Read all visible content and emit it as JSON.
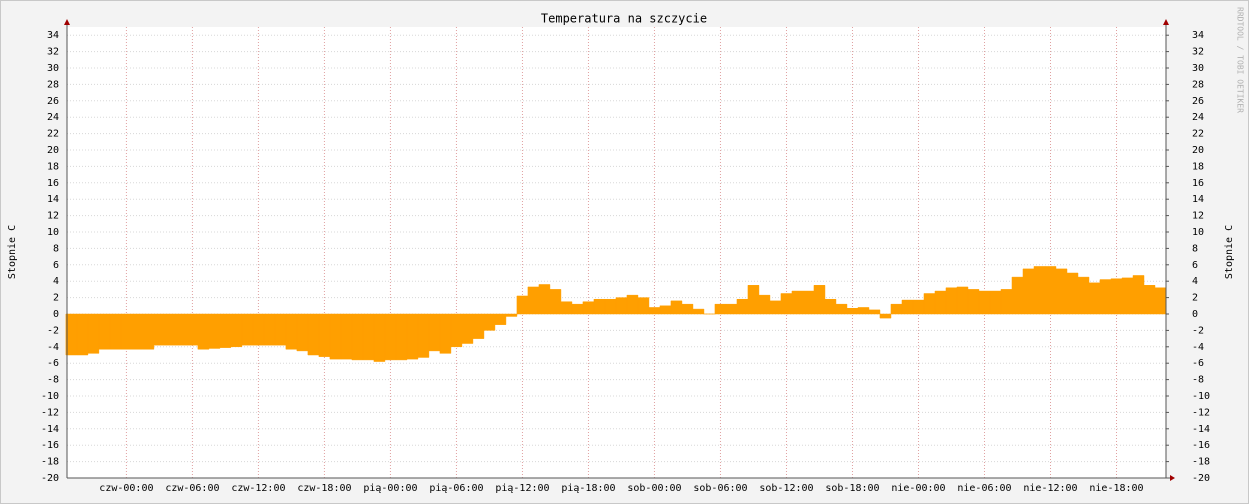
{
  "chart_data": {
    "type": "area",
    "title": "Temperatura na szczycie",
    "y_label": "Stopnie C",
    "y2_label": "Stopnie C",
    "watermark": "RRDTOOL / TOBI OETIKER",
    "x": [
      -5,
      -4,
      -3,
      -2,
      -1,
      0,
      1,
      2,
      3,
      4,
      5,
      6,
      7,
      8,
      9,
      10,
      11,
      12,
      13,
      14,
      15,
      16,
      17,
      18,
      19,
      20,
      21,
      22,
      23,
      24,
      25,
      26,
      27,
      28,
      29,
      30,
      31,
      32,
      33,
      34,
      35,
      36,
      37,
      38,
      39,
      40,
      41,
      42,
      43,
      44,
      45,
      46,
      47,
      48,
      49,
      50,
      51,
      52,
      53,
      54,
      55,
      56,
      57,
      58,
      59,
      60,
      61,
      62,
      63,
      64,
      65,
      66,
      67,
      68,
      69,
      70,
      71,
      72,
      73,
      74,
      75,
      76,
      77,
      78,
      79,
      80,
      81,
      82,
      83,
      84,
      85,
      86,
      87,
      88,
      89,
      90,
      91,
      92,
      93,
      94
    ],
    "values": [
      -5,
      -5,
      -4.8,
      -4.3,
      -4.3,
      -4.3,
      -4.3,
      -4.3,
      -3.8,
      -3.8,
      -3.8,
      -3.8,
      -4.3,
      -4.2,
      -4.1,
      -4,
      -3.8,
      -3.8,
      -3.8,
      -3.8,
      -4.3,
      -4.5,
      -5,
      -5.2,
      -5.5,
      -5.5,
      -5.6,
      -5.6,
      -5.8,
      -5.6,
      -5.6,
      -5.5,
      -5.3,
      -4.5,
      -4.8,
      -4,
      -3.6,
      -3,
      -2,
      -1.3,
      -0.3,
      2.2,
      3.3,
      3.6,
      3,
      1.5,
      1.2,
      1.5,
      1.8,
      1.8,
      2,
      2.3,
      2,
      0.8,
      1,
      1.6,
      1.2,
      0.6,
      0,
      1.2,
      1.2,
      1.8,
      3.5,
      2.3,
      1.6,
      2.5,
      2.8,
      2.8,
      3.5,
      1.8,
      1.2,
      0.7,
      0.8,
      0.5,
      -0.5,
      1.2,
      1.7,
      1.7,
      2.5,
      2.8,
      3.2,
      3.3,
      3,
      2.8,
      2.8,
      3,
      4.5,
      5.5,
      5.8,
      5.8,
      5.5,
      5,
      4.5,
      3.8,
      4.2,
      4.3,
      4.4,
      4.7,
      3.5,
      3.2
    ],
    "color": "#ff9f00",
    "xlim": [
      -5.4,
      94.5
    ],
    "xticks": [
      {
        "value": 0,
        "label": "czw-00:00"
      },
      {
        "value": 6,
        "label": "czw-06:00"
      },
      {
        "value": 12,
        "label": "czw-12:00"
      },
      {
        "value": 18,
        "label": "czw-18:00"
      },
      {
        "value": 24,
        "label": "pią-00:00"
      },
      {
        "value": 30,
        "label": "pią-06:00"
      },
      {
        "value": 36,
        "label": "pią-12:00"
      },
      {
        "value": 42,
        "label": "pią-18:00"
      },
      {
        "value": 48,
        "label": "sob-00:00"
      },
      {
        "value": 54,
        "label": "sob-06:00"
      },
      {
        "value": 60,
        "label": "sob-12:00"
      },
      {
        "value": 66,
        "label": "sob-18:00"
      },
      {
        "value": 72,
        "label": "nie-00:00"
      },
      {
        "value": 78,
        "label": "nie-06:00"
      },
      {
        "value": 84,
        "label": "nie-12:00"
      },
      {
        "value": 90,
        "label": "nie-18:00"
      }
    ],
    "ylim": [
      -20,
      35
    ],
    "yticks": [
      -20,
      -18,
      -16,
      -14,
      -12,
      -10,
      -8,
      -6,
      -4,
      -2,
      0,
      2,
      4,
      6,
      8,
      10,
      12,
      14,
      16,
      18,
      20,
      22,
      24,
      26,
      28,
      30,
      32,
      34
    ],
    "y2lim": [
      -20,
      35
    ],
    "y2ticks": [
      -20,
      -18,
      -16,
      -14,
      -12,
      -10,
      -8,
      -6,
      -4,
      -2,
      0,
      2,
      4,
      6,
      8,
      10,
      12,
      14,
      16,
      18,
      20,
      22,
      24,
      26,
      28,
      30,
      32,
      34
    ],
    "grid": true
  }
}
